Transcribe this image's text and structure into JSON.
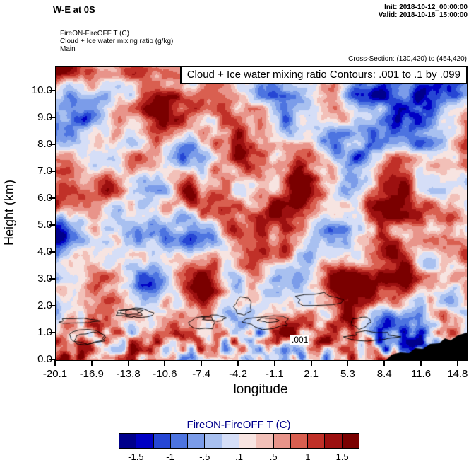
{
  "header": {
    "title": "W-E at 0S",
    "init": "Init: 2018-10-12_00:00:00",
    "valid": "Valid: 2018-10-18_15:00:00",
    "field_temp": "FireON-FireOFF T   (C)",
    "field_cloud": "Cloud + Ice water mixing ratio   (g/kg)",
    "field_main": "Main",
    "cross_section": "Cross-Section: (130,420) to (454,420)"
  },
  "chart_data": {
    "type": "heatmap",
    "title": "W-E at 0S",
    "contour_box_title": "Cloud + Ice water mixing ratio Contours: .001 to .1 by .099",
    "fill_series": "FireON-FireOFF T (C)",
    "contour_series": "Cloud + Ice water mixing ratio (g/kg)",
    "contour_levels": ".001 to .1 by .099",
    "contour_label": ".001",
    "xlabel": "longitude",
    "ylabel": "Height (km)",
    "x_ticks": [
      "-20.1",
      "-16.9",
      "-13.8",
      "-10.6",
      "-7.4",
      "-4.2",
      "-1.1",
      "2.1",
      "5.3",
      "8.4",
      "11.6",
      "14.8"
    ],
    "y_ticks": [
      "0.0",
      "1.0",
      "2.0",
      "3.0",
      "4.0",
      "5.0",
      "6.0",
      "7.0",
      "8.0",
      "9.0",
      "10.0"
    ],
    "xlim": [
      -20.1,
      14.8
    ],
    "ylim": [
      0.0,
      10.9
    ],
    "colorbar_title": "FireON-FireOFF T  (C)",
    "colorbar_title_color": "#00008b",
    "colorbar_levels": [
      "-1.5",
      "-1",
      "-.5",
      ".1",
      ".5",
      "1",
      "1.5"
    ],
    "colorbar_colors": [
      "#00008b",
      "#0000c4",
      "#2646d4",
      "#4d74e0",
      "#7b9ce9",
      "#a8c0f0",
      "#d5def7",
      "#f7e4e1",
      "#f2c0b8",
      "#e8948a",
      "#d95f50",
      "#c03028",
      "#9c1010",
      "#7a0000"
    ],
    "terrain_color": "#000000",
    "notes": "Filled field: FireON-FireOFF temperature difference; thin black contour lines of cloud+ice mixing ratio near 1 km; black terrain silhouette at lower right."
  }
}
